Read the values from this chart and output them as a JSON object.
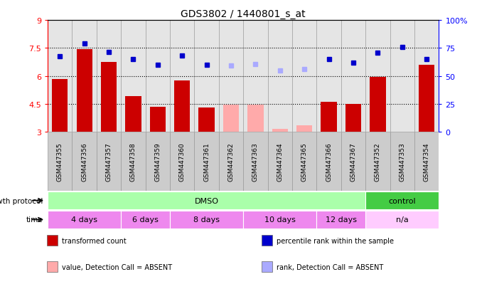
{
  "title": "GDS3802 / 1440801_s_at",
  "samples": [
    "GSM447355",
    "GSM447356",
    "GSM447357",
    "GSM447358",
    "GSM447359",
    "GSM447360",
    "GSM447361",
    "GSM447362",
    "GSM447363",
    "GSM447364",
    "GSM447365",
    "GSM447366",
    "GSM447367",
    "GSM447352",
    "GSM447353",
    "GSM447354"
  ],
  "bar_values": [
    5.85,
    7.45,
    6.75,
    4.9,
    4.35,
    5.75,
    4.3,
    null,
    null,
    null,
    null,
    4.6,
    4.5,
    5.95,
    null,
    6.6
  ],
  "bar_absent_values": [
    null,
    null,
    null,
    null,
    null,
    null,
    null,
    4.45,
    4.45,
    3.15,
    3.35,
    null,
    null,
    null,
    null,
    null
  ],
  "bar_color_present": "#cc0000",
  "bar_color_absent": "#ffaaaa",
  "dot_values": [
    7.05,
    7.75,
    7.3,
    6.9,
    6.6,
    7.1,
    6.6,
    null,
    null,
    null,
    null,
    6.9,
    6.7,
    7.25,
    7.55,
    6.9
  ],
  "dot_absent_values": [
    null,
    null,
    null,
    null,
    null,
    null,
    null,
    6.55,
    6.65,
    6.3,
    6.35,
    null,
    null,
    null,
    null,
    null
  ],
  "dot_color_present": "#0000cc",
  "dot_color_absent": "#aaaaff",
  "ylim": [
    3.0,
    9.0
  ],
  "yticks": [
    3.0,
    4.5,
    6.0,
    7.5,
    9.0
  ],
  "ytick_labels": [
    "3",
    "4.5",
    "6",
    "7.5",
    "9"
  ],
  "y2lim": [
    0,
    100
  ],
  "y2ticks": [
    0,
    25,
    50,
    75,
    100
  ],
  "y2tick_labels": [
    "0",
    "25",
    "50",
    "75",
    "100%"
  ],
  "hlines": [
    4.5,
    6.0,
    7.5
  ],
  "col_bg_color": "#cccccc",
  "col_border_color": "#999999",
  "growth_protocol_groups": [
    {
      "label": "DMSO",
      "start": 0,
      "end": 12,
      "color": "#aaffaa"
    },
    {
      "label": "control",
      "start": 13,
      "end": 15,
      "color": "#44cc44"
    }
  ],
  "time_groups": [
    {
      "label": "4 days",
      "start": 0,
      "end": 2,
      "color": "#ee88ee"
    },
    {
      "label": "6 days",
      "start": 3,
      "end": 4,
      "color": "#ee88ee"
    },
    {
      "label": "8 days",
      "start": 5,
      "end": 7,
      "color": "#ee88ee"
    },
    {
      "label": "10 days",
      "start": 8,
      "end": 10,
      "color": "#ee88ee"
    },
    {
      "label": "12 days",
      "start": 11,
      "end": 12,
      "color": "#ee88ee"
    },
    {
      "label": "n/a",
      "start": 13,
      "end": 15,
      "color": "#ffccff"
    }
  ],
  "legend_items": [
    {
      "label": "transformed count",
      "color": "#cc0000"
    },
    {
      "label": "percentile rank within the sample",
      "color": "#0000cc"
    },
    {
      "label": "value, Detection Call = ABSENT",
      "color": "#ffaaaa"
    },
    {
      "label": "rank, Detection Call = ABSENT",
      "color": "#aaaaff"
    }
  ],
  "growth_protocol_label": "growth protocol",
  "time_label": "time",
  "bar_bottom": 3.0
}
